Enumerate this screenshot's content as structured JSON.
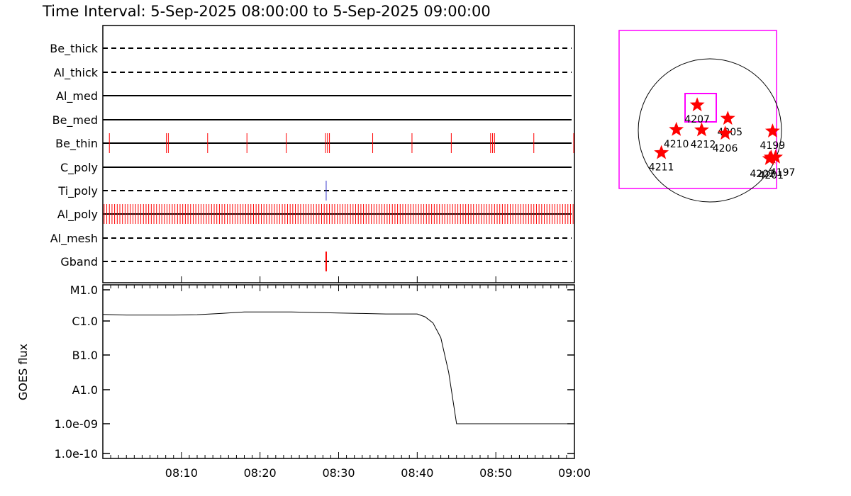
{
  "title": "Time Interval:  5-Sep-2025 08:00:00 to  5-Sep-2025 09:00:00",
  "colors": {
    "background": "#ffffff",
    "axis": "#000000",
    "events_red": "#ff0000",
    "events_blue": "#3333cc",
    "box_magenta": "#ff00ff"
  },
  "chart_data": [
    {
      "type": "event-timeline",
      "x_range": [
        "08:00",
        "09:00"
      ],
      "channels": [
        {
          "name": "Be_thick",
          "line": "dashed",
          "events": [],
          "event_color": "red"
        },
        {
          "name": "Al_thick",
          "line": "dashed",
          "events": [],
          "event_color": "red"
        },
        {
          "name": "Al_med",
          "line": "solid",
          "events": [],
          "event_color": "red"
        },
        {
          "name": "Be_med",
          "line": "solid",
          "events": [],
          "event_color": "red"
        },
        {
          "name": "Be_thin",
          "line": "solid",
          "event_color": "red",
          "events": [
            "08:00:50",
            "08:08:05",
            "08:08:20",
            "08:13:20",
            "08:18:20",
            "08:23:20",
            "08:28:20",
            "08:28:35",
            "08:28:50",
            "08:34:20",
            "08:39:20",
            "08:44:20",
            "08:49:20",
            "08:49:35",
            "08:49:50",
            "08:54:50",
            "09:00:00"
          ]
        },
        {
          "name": "C_poly",
          "line": "solid",
          "events": [],
          "event_color": "red"
        },
        {
          "name": "Ti_poly",
          "line": "dashed",
          "events": [
            "08:28:25"
          ],
          "event_color": "blue"
        },
        {
          "name": "Al_poly",
          "line": "solid",
          "event_color": "red",
          "events_note": "dense train of events roughly every 20 s across the whole interval",
          "events_start": "08:00:10",
          "events_end": "09:00:00",
          "events_spacing_s": 20
        },
        {
          "name": "Al_mesh",
          "line": "dashed",
          "events": [],
          "event_color": "red"
        },
        {
          "name": "Gband",
          "line": "dashed",
          "events": [
            "08:28:25"
          ],
          "event_color": "red"
        }
      ]
    },
    {
      "type": "line",
      "ylabel": "GOES flux",
      "y_scale": "log",
      "ylim": [
        1e-10,
        1e-05
      ],
      "y_ticks": [
        {
          "label": "M1.0",
          "value": 1e-05
        },
        {
          "label": "C1.0",
          "value": 1e-06
        },
        {
          "label": "B1.0",
          "value": 1e-07
        },
        {
          "label": "A1.0",
          "value": 1e-08
        },
        {
          "label": "1.0e-09",
          "value": 1e-09
        },
        {
          "label": "1.0e-10",
          "value": 1e-10
        }
      ],
      "x_range": [
        "08:00",
        "09:00"
      ],
      "x_ticks": [
        "08:10",
        "08:20",
        "08:30",
        "08:40",
        "08:50",
        "09:00"
      ],
      "series": [
        {
          "x": [
            "08:00",
            "08:03",
            "08:06",
            "08:09",
            "08:12",
            "08:15",
            "08:18",
            "08:21",
            "08:24",
            "08:27",
            "08:30",
            "08:33",
            "08:36",
            "08:39",
            "08:40",
            "08:41",
            "08:42",
            "08:43",
            "08:44",
            "08:45",
            "08:50",
            "09:00"
          ],
          "y": [
            1.4e-06,
            1.35e-06,
            1.35e-06,
            1.35e-06,
            1.38e-06,
            1.5e-06,
            1.65e-06,
            1.65e-06,
            1.65e-06,
            1.6e-06,
            1.55e-06,
            1.5e-06,
            1.45e-06,
            1.45e-06,
            1.45e-06,
            1.2e-06,
            8e-07,
            3e-07,
            3e-08,
            1e-09,
            1e-09,
            1e-09
          ]
        }
      ]
    },
    {
      "type": "scatter",
      "description_role": "solar disk map with active regions",
      "points": [
        {
          "label": "4207",
          "x": -170,
          "y": 340
        },
        {
          "label": "4212",
          "x": -110,
          "y": 5
        },
        {
          "label": "4205",
          "x": 240,
          "y": 160
        },
        {
          "label": "4206",
          "x": 205,
          "y": -40
        },
        {
          "label": "4210",
          "x": -450,
          "y": 10
        },
        {
          "label": "4211",
          "x": -650,
          "y": -300
        },
        {
          "label": "4199",
          "x": 840,
          "y": -10
        },
        {
          "label": "4201",
          "x": 820,
          "y": -360
        },
        {
          "label": "4197",
          "x": 880,
          "y": -360
        },
        {
          "label": "4202",
          "x": 800,
          "y": -380
        }
      ]
    }
  ]
}
